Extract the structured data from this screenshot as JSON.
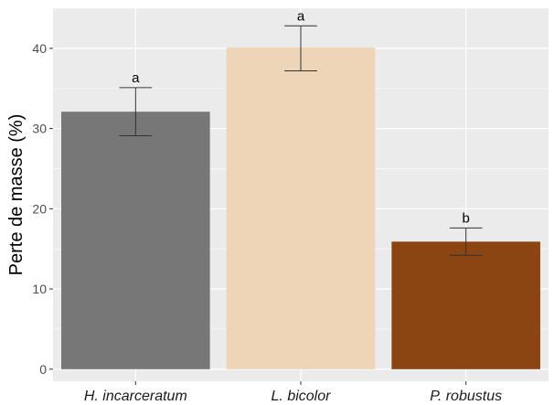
{
  "chart_data": {
    "type": "bar",
    "categories": [
      "H. incarceratum",
      "L. bicolor",
      "P. robustus"
    ],
    "values": [
      32.1,
      40.1,
      15.9
    ],
    "error_low": [
      29.1,
      37.2,
      14.2
    ],
    "error_high": [
      35.1,
      42.8,
      17.6
    ],
    "significance_letters": [
      "a",
      "a",
      "b"
    ],
    "bar_colors": [
      "#777777",
      "#eed5b7",
      "#8b4513"
    ],
    "xlabel": "",
    "ylabel": "Perte de masse (%)",
    "ylim": [
      -1.5,
      45
    ],
    "yticks": [
      0,
      10,
      20,
      30,
      40
    ],
    "ytick_labels": [
      "0",
      "10",
      "20",
      "30",
      "40"
    ],
    "grid": true,
    "panel_background": "#ebebeb",
    "grid_color": "#ffffff"
  }
}
